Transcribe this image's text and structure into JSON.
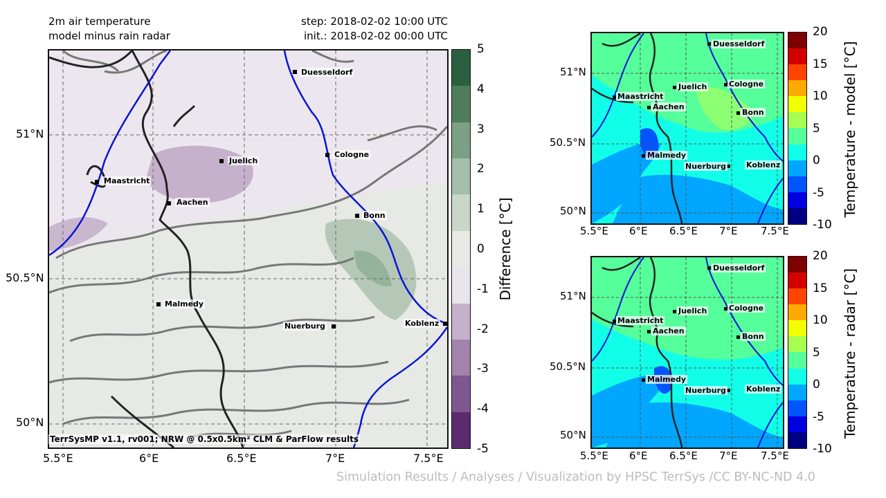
{
  "header": {
    "title_line1": "2m air temperature",
    "title_line2": "model minus rain radar",
    "step": "step: 2018-02-02 10:00 UTC",
    "init": "init.: 2018-02-02 00:00 UTC"
  },
  "main_map": {
    "lat_ticks": [
      "51°N",
      "50.5°N",
      "50°N"
    ],
    "lon_ticks": [
      "5.5°E",
      "6°E",
      "6.5°E",
      "7°E",
      "7.5°E"
    ],
    "footer": "TerrSysMP v1.1, rv001; NRW @ 0.5x0.5km² CLM & ParFlow results",
    "cities": [
      "Duesseldorf",
      "Juelich",
      "Cologne",
      "Maastricht",
      "Aachen",
      "Bonn",
      "Malmedy",
      "Nuerburg",
      "Koblenz"
    ]
  },
  "diff_colorbar": {
    "label": "Difference [°C]",
    "ticks": [
      "5",
      "4",
      "3",
      "2",
      "1",
      "0",
      "-1",
      "-2",
      "-3",
      "-4",
      "-5"
    ],
    "colors": [
      "#2a6040",
      "#4f7d5c",
      "#7ba086",
      "#a4bea9",
      "#c9d7cb",
      "#e8eae6",
      "#eae4ec",
      "#c4b1ca",
      "#a283ab",
      "#7e5690",
      "#5c2a6e"
    ]
  },
  "model_map": {
    "lat_ticks": [
      "51°N",
      "50.5°N",
      "50°N"
    ],
    "lon_ticks": [
      "5.5°E",
      "6°E",
      "6.5°E",
      "7°E",
      "7.5°E"
    ],
    "cities": [
      "Duesseldorf",
      "Juelich",
      "Cologne",
      "Maastricht",
      "Aachen",
      "Bonn",
      "Malmedy",
      "Nuerburg",
      "Koblenz"
    ]
  },
  "model_colorbar": {
    "label": "Temperature - model [°C]",
    "ticks": [
      "20",
      "15",
      "10",
      "5",
      "0",
      "-5",
      "-10"
    ]
  },
  "radar_map": {
    "lat_ticks": [
      "51°N",
      "50.5°N",
      "50°N"
    ],
    "lon_ticks": [
      "5.5°E",
      "6°E",
      "6.5°E",
      "7°E",
      "7.5°E"
    ],
    "cities": [
      "Duesseldorf",
      "Juelich",
      "Cologne",
      "Maastricht",
      "Aachen",
      "Bonn",
      "Malmedy",
      "Nuerburg",
      "Koblenz"
    ]
  },
  "radar_colorbar": {
    "label": "Temperature - radar [°C]",
    "ticks": [
      "20",
      "15",
      "10",
      "5",
      "0",
      "-5",
      "-10"
    ]
  },
  "temp_colors": [
    "#7f0000",
    "#d40000",
    "#ff4400",
    "#ffaa00",
    "#f2ff00",
    "#a6ff50",
    "#55ff9a",
    "#11ffe8",
    "#00a6ff",
    "#0055ff",
    "#0000e0",
    "#000080"
  ],
  "credit": "Simulation Results / Analyses / Visualization by HPSC TerrSys /CC BY-NC-ND 4.0"
}
